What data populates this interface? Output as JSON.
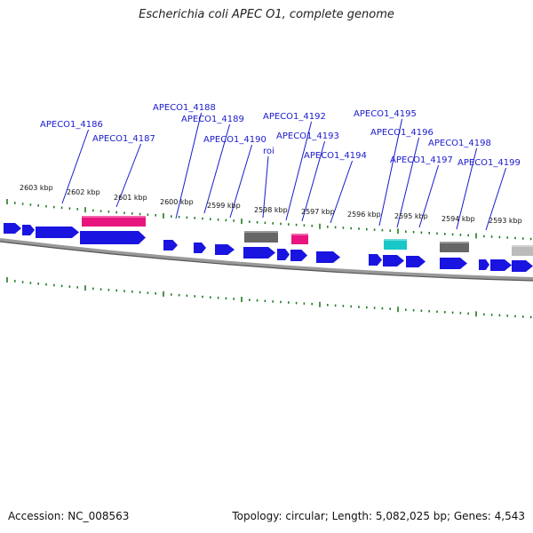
{
  "title": "Escherichia coli APEC O1, complete genome",
  "accession": "Accession: NC_008563",
  "topology": "Topology: circular; Length: 5,082,025 bp; Genes: 4,543",
  "colors": {
    "cds": "#1a14e0",
    "rrna": "#e8157f",
    "gray_feature": "#666666",
    "light_gray_feature": "#bbbbbb",
    "cyan_feature": "#19c7c7",
    "tick_green": "#1f7a1f",
    "label_blue": "#1a1acc",
    "backbone": "#888888"
  },
  "gene_labels": [
    "APECO1_4186",
    "APECO1_4187",
    "APECO1_4188",
    "APECO1_4189",
    "APECO1_4190",
    "roi",
    "APECO1_4192",
    "APECO1_4193",
    "APECO1_4194",
    "APECO1_4195",
    "APECO1_4196",
    "APECO1_4197",
    "APECO1_4198",
    "APECO1_4199"
  ],
  "kbp_ticks": [
    "2603 kbp",
    "2602 kbp",
    "2601 kbp",
    "2600 kbp",
    "2599 kbp",
    "2598 kbp",
    "2597 kbp",
    "2596 kbp",
    "2595 kbp",
    "2594 kbp",
    "2593 kbp"
  ]
}
